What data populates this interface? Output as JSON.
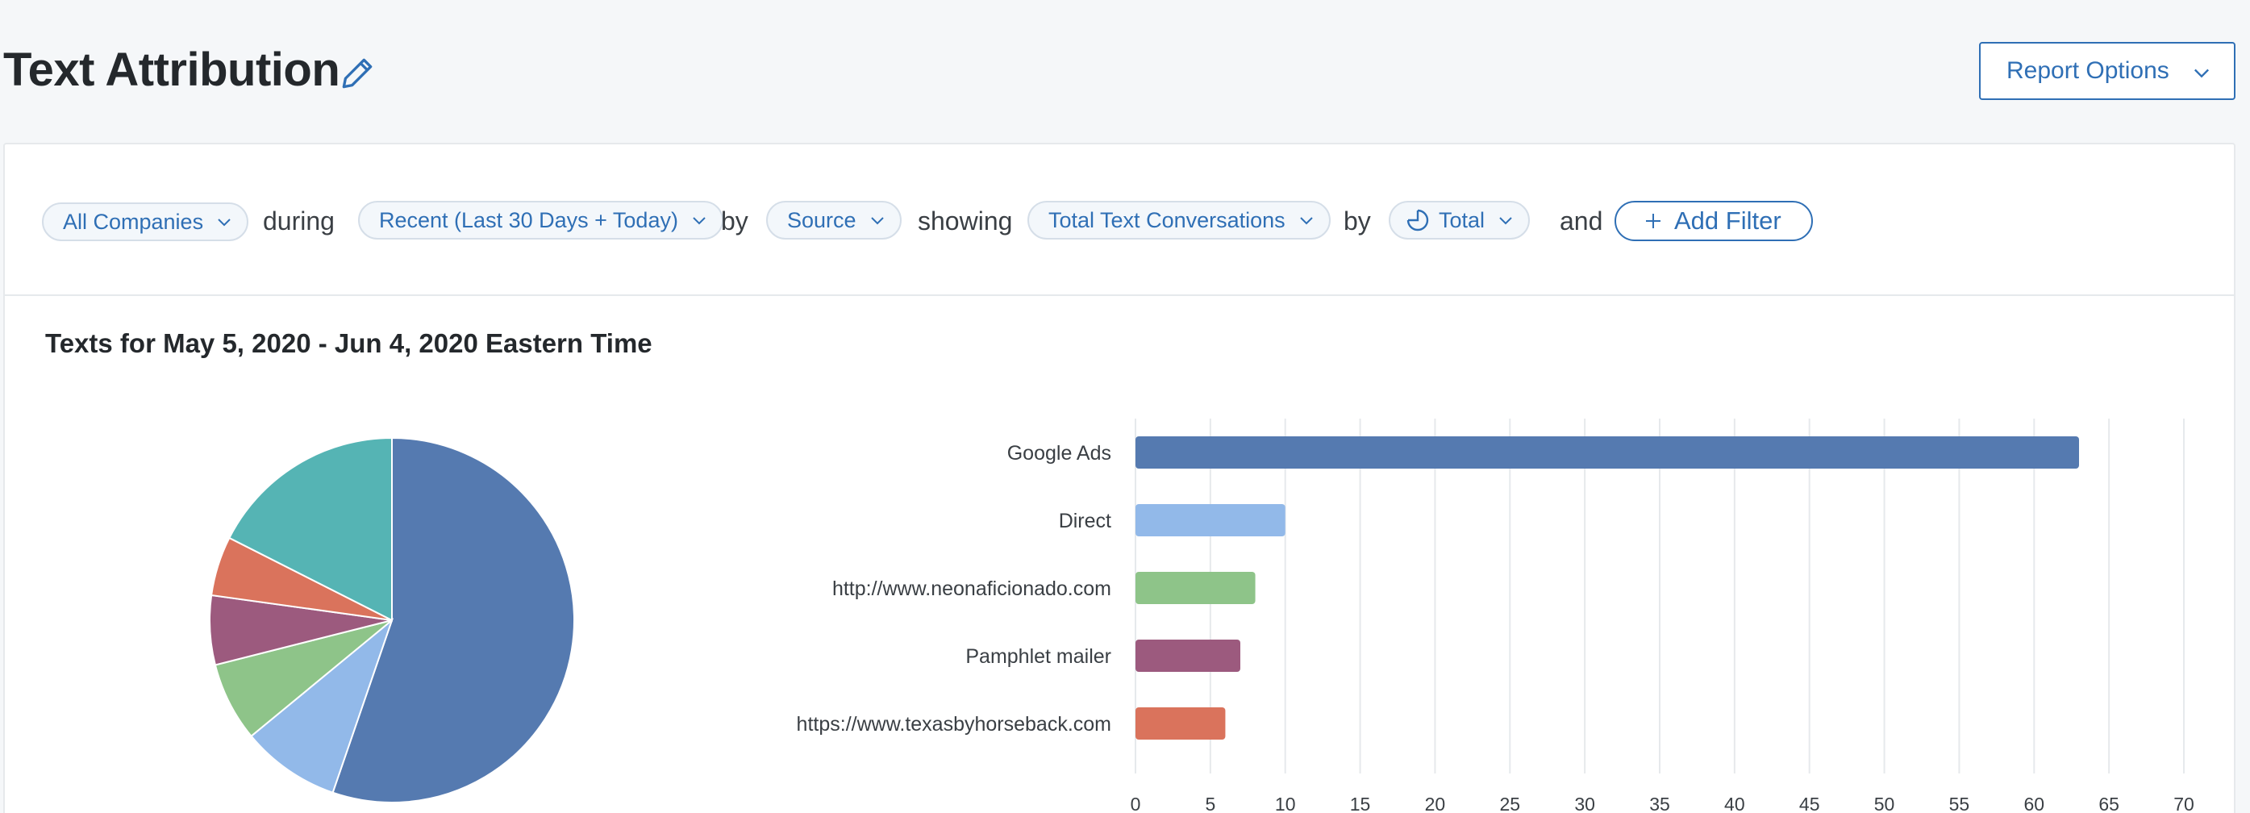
{
  "header": {
    "title": "Text Attribution",
    "report_options_label": "Report Options"
  },
  "filters": {
    "companies": "All Companies",
    "during_label": "during",
    "date_range": "Recent (Last 30 Days + Today)",
    "by_label_1": "by",
    "group_by": "Source",
    "showing_label": "showing",
    "metric": "Total Text Conversations",
    "by_label_2": "by",
    "breakdown": "Total",
    "and_label": "and",
    "add_filter_label": "Add Filter"
  },
  "colors": {
    "accent": "#2f6fb5"
  },
  "chart_data": {
    "type": "bar",
    "title": "Texts for May 5, 2020 - Jun 4, 2020 Eastern Time",
    "categories": [
      "Google Ads",
      "Direct",
      "http://www.neonaficionado.com",
      "Pamphlet mailer",
      "https://www.texasbyhorseback.com"
    ],
    "values": [
      63,
      10,
      8,
      7,
      6
    ],
    "colors": [
      "#557ab0",
      "#92b9e9",
      "#8ec489",
      "#9c5a7e",
      "#da735c"
    ],
    "xlim": [
      0,
      70
    ],
    "xticks": [
      0,
      5,
      10,
      15,
      20,
      25,
      30,
      35,
      40,
      45,
      50,
      55,
      60,
      65,
      70
    ],
    "grid": true,
    "pie": {
      "values": [
        63,
        10,
        8,
        7,
        6,
        20
      ],
      "colors": [
        "#557ab0",
        "#92b9e9",
        "#8ec489",
        "#9c5a7e",
        "#da735c",
        "#55b4b4"
      ]
    }
  }
}
